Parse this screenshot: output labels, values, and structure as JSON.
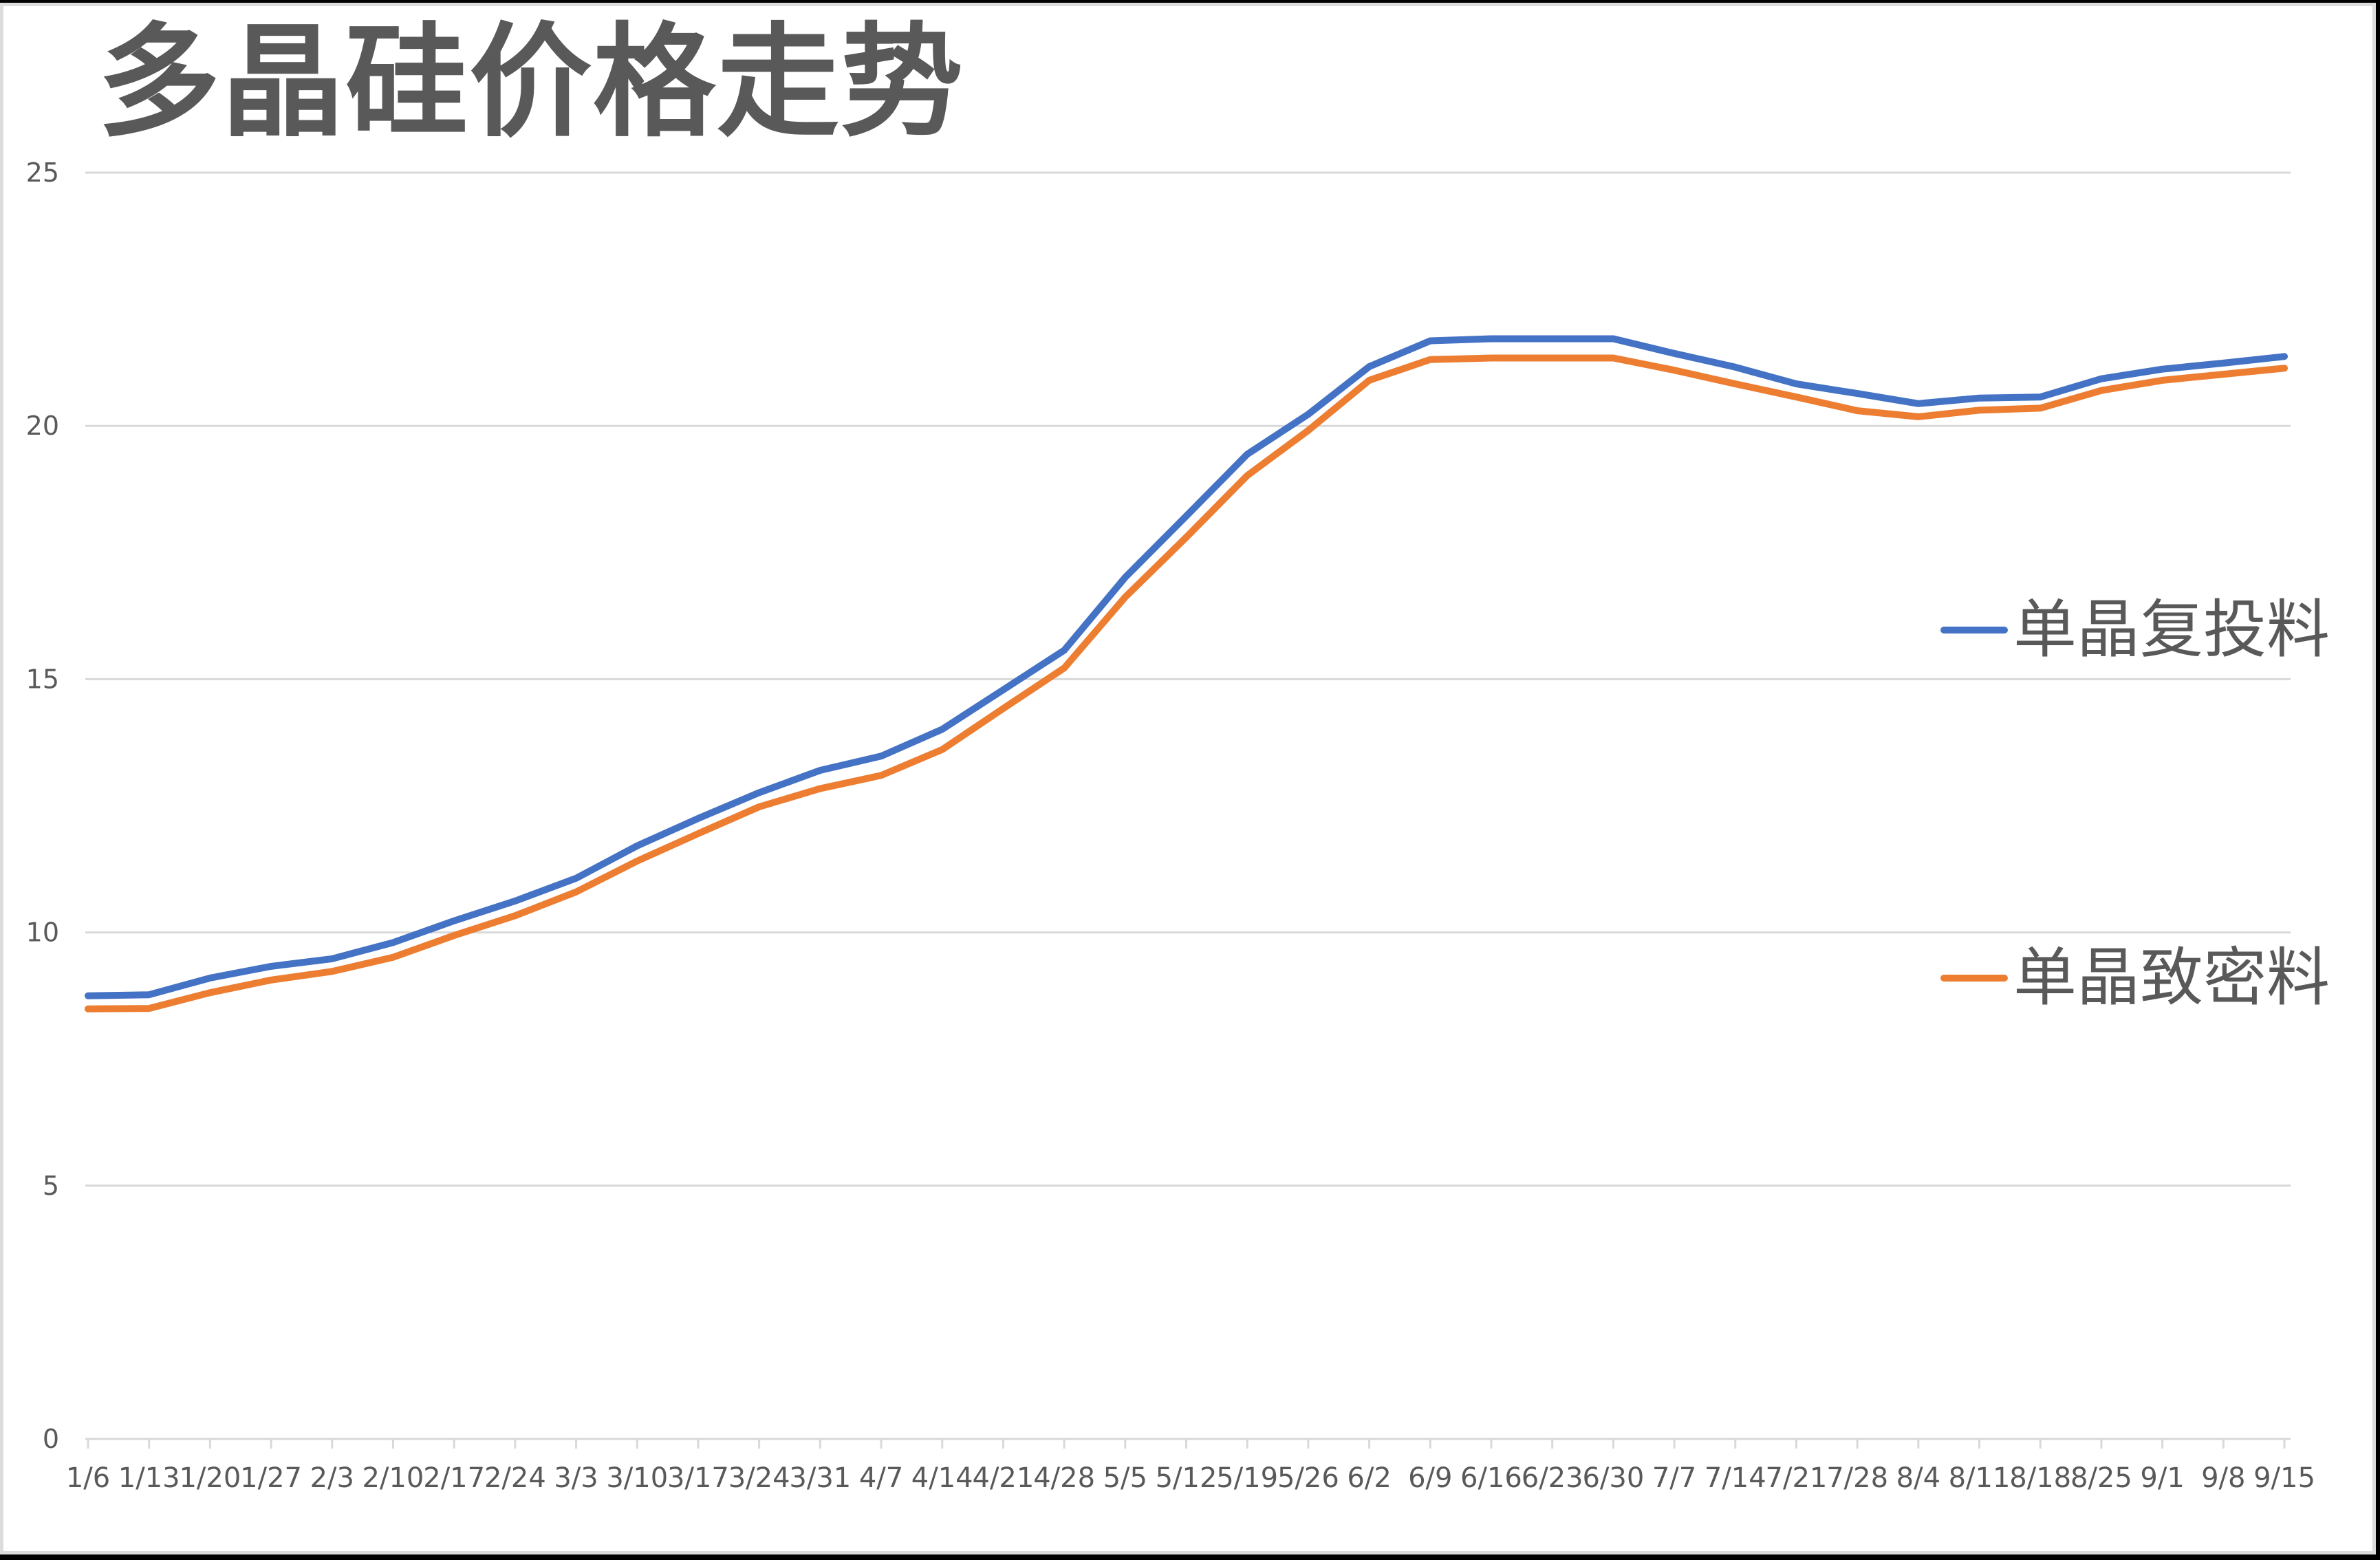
{
  "chart_title": "多晶硅价格走势",
  "colors": {
    "series_1": "#4472C4",
    "series_2": "#ED7D31",
    "gridline": "#D9D9D9",
    "text": "#595959"
  },
  "legend": {
    "items": [
      {
        "label": "单晶复投料",
        "color": "#4472C4"
      },
      {
        "label": "单晶致密料",
        "color": "#ED7D31"
      }
    ]
  },
  "y_axis": {
    "ticks": [
      "0",
      "5",
      "10",
      "15",
      "20",
      "25"
    ]
  },
  "x_axis": {
    "ticks": [
      "1/6",
      "1/13",
      "1/20",
      "1/27",
      "2/3",
      "2/10",
      "2/17",
      "2/24",
      "3/3",
      "3/10",
      "3/17",
      "3/24",
      "3/31",
      "4/7",
      "4/14",
      "4/21",
      "4/28",
      "5/5",
      "5/12",
      "5/19",
      "5/26",
      "6/2",
      "6/9",
      "6/16",
      "6/23",
      "6/30",
      "7/7",
      "7/14",
      "7/21",
      "7/28",
      "8/4",
      "8/11",
      "8/18",
      "8/25",
      "9/1",
      "9/8",
      "9/15"
    ]
  },
  "chart_data": {
    "type": "line",
    "title": "多晶硅价格走势",
    "xlabel": "",
    "ylabel": "",
    "ylim": [
      0,
      25
    ],
    "yticks": [
      0,
      5,
      10,
      15,
      20,
      25
    ],
    "grid": true,
    "legend_position": "right",
    "x": [
      "1/6",
      "1/13",
      "1/20",
      "1/27",
      "2/3",
      "2/10",
      "2/17",
      "2/24",
      "3/3",
      "3/10",
      "3/17",
      "3/24",
      "3/31",
      "4/7",
      "4/14",
      "4/21",
      "4/28",
      "5/5",
      "5/12",
      "5/19",
      "5/26",
      "6/2",
      "6/9",
      "6/16",
      "6/23",
      "6/30",
      "7/7",
      "7/14",
      "7/21",
      "7/28",
      "8/4",
      "8/11",
      "8/18",
      "8/25",
      "9/1",
      "9/8",
      "9/15"
    ],
    "series": [
      {
        "name": "单晶复投料",
        "color": "#4472C4",
        "values": [
          8.75,
          8.77,
          9.1,
          9.33,
          9.48,
          9.8,
          10.23,
          10.62,
          11.07,
          11.71,
          12.25,
          12.76,
          13.2,
          13.48,
          14.01,
          14.79,
          15.57,
          17.01,
          18.22,
          19.44,
          20.23,
          21.17,
          21.68,
          21.72,
          21.72,
          21.72,
          21.43,
          21.16,
          20.83,
          20.64,
          20.44,
          20.55,
          20.57,
          20.93,
          21.12,
          21.24,
          21.37
        ]
      },
      {
        "name": "单晶致密料",
        "color": "#ED7D31",
        "values": [
          8.49,
          8.5,
          8.81,
          9.06,
          9.23,
          9.51,
          9.94,
          10.33,
          10.8,
          11.41,
          11.95,
          12.48,
          12.84,
          13.1,
          13.61,
          14.42,
          15.22,
          16.62,
          17.8,
          19.02,
          19.91,
          20.9,
          21.31,
          21.34,
          21.34,
          21.34,
          21.1,
          20.83,
          20.57,
          20.3,
          20.18,
          20.31,
          20.35,
          20.7,
          20.9,
          21.02,
          21.14
        ]
      }
    ]
  }
}
